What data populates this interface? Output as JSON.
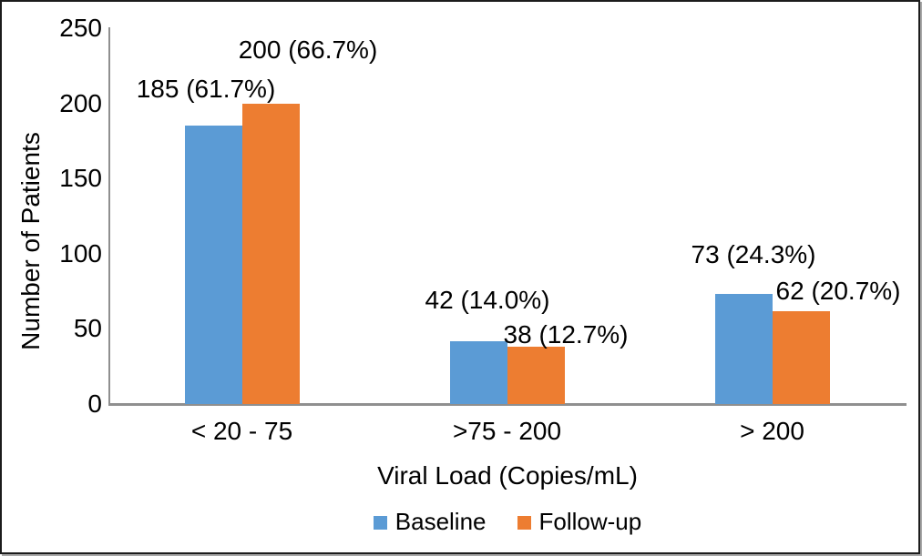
{
  "figure": {
    "background": "#ffffff",
    "border_color": "#1c1c1c",
    "border_shadow_color": "#a8a8a8"
  },
  "chart_data": {
    "type": "bar",
    "title": "",
    "xlabel": "Viral Load (Copies/mL)",
    "ylabel": "Number of Patients",
    "categories": [
      "< 20 - 75",
      ">75 - 200",
      "> 200"
    ],
    "series": [
      {
        "name": "Baseline",
        "color": "#5B9BD5",
        "values": [
          185,
          42,
          73
        ],
        "data_labels": [
          "185 (61.7%)",
          "42 (14.0%)",
          "73 (24.3%)"
        ]
      },
      {
        "name": "Follow-up",
        "color": "#ED7D31",
        "values": [
          200,
          38,
          62
        ],
        "data_labels": [
          "200 (66.7%)",
          "38 (12.7%)",
          "62 (20.7%)"
        ]
      }
    ],
    "ylim": [
      0,
      250
    ],
    "y_ticks": [
      0,
      50,
      100,
      150,
      200,
      250
    ],
    "grid": false,
    "legend_position": "bottom",
    "axis_color": "#8f8f8f",
    "text_color": "#000000"
  }
}
